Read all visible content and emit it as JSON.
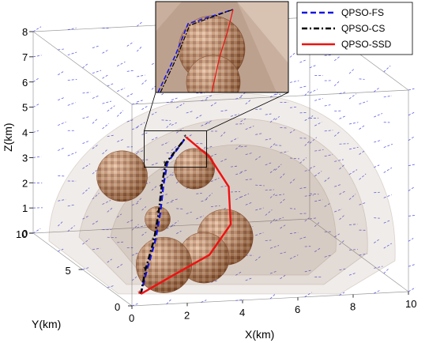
{
  "chart_data": {
    "type": "scatter",
    "xlabel": "X(km)",
    "ylabel": "Y(km)",
    "zlabel": "Z(km)",
    "xlim": [
      0,
      10
    ],
    "ylim": [
      0,
      10
    ],
    "zlim": [
      0,
      8
    ],
    "x_ticks": [
      "0",
      "2",
      "4",
      "6",
      "8",
      "10"
    ],
    "y_ticks": [
      "0",
      "5",
      "10"
    ],
    "z_ticks": [
      "0",
      "1",
      "2",
      "3",
      "4",
      "5",
      "6",
      "7",
      "8"
    ],
    "legend_position": "top-right",
    "series": [
      {
        "name": "QPSO-FS",
        "color": "#1515e0",
        "style": "dashed",
        "points": [
          [
            0.5,
            0.5,
            0.3
          ],
          [
            1.2,
            1.8,
            0.9
          ],
          [
            2.0,
            3.2,
            1.6
          ],
          [
            2.6,
            4.4,
            2.3
          ],
          [
            3.1,
            5.5,
            3.0
          ],
          [
            3.6,
            6.5,
            3.6
          ],
          [
            4.6,
            7.4,
            4.3
          ]
        ]
      },
      {
        "name": "QPSO-CS",
        "color": "#000000",
        "style": "dash-dot",
        "points": [
          [
            0.5,
            0.5,
            0.3
          ],
          [
            1.1,
            1.7,
            0.9
          ],
          [
            1.9,
            3.1,
            1.6
          ],
          [
            2.5,
            4.3,
            2.3
          ],
          [
            3.0,
            5.4,
            3.0
          ],
          [
            3.5,
            6.4,
            3.6
          ],
          [
            4.6,
            7.4,
            4.3
          ]
        ]
      },
      {
        "name": "QPSO-SSD",
        "color": "#ee1111",
        "style": "solid",
        "points": [
          [
            0.5,
            0.5,
            0.3
          ],
          [
            2.0,
            1.6,
            0.6
          ],
          [
            3.8,
            2.8,
            1.0
          ],
          [
            5.0,
            4.0,
            1.8
          ],
          [
            5.5,
            5.6,
            2.8
          ],
          [
            5.3,
            7.0,
            3.6
          ],
          [
            4.6,
            7.4,
            4.3
          ]
        ]
      }
    ],
    "obstacles": [
      {
        "center": [
          1.8,
          1.8,
          1.0
        ],
        "r": 1.1
      },
      {
        "center": [
          3.6,
          2.8,
          0.9
        ],
        "r": 1.0
      },
      {
        "center": [
          4.8,
          4.0,
          1.3
        ],
        "r": 1.1
      },
      {
        "center": [
          3.0,
          5.8,
          1.6
        ],
        "r": 0.5
      },
      {
        "center": [
          2.5,
          8.0,
          2.7
        ],
        "r": 1.0
      },
      {
        "center": [
          5.4,
          8.8,
          2.6
        ],
        "r": 0.8
      }
    ],
    "colors": {
      "obstacle_light": "#d49a72",
      "obstacle_dark": "#8a5030",
      "wind_field": "#2b2bdd",
      "threat_zone": "#8a6a58"
    }
  }
}
